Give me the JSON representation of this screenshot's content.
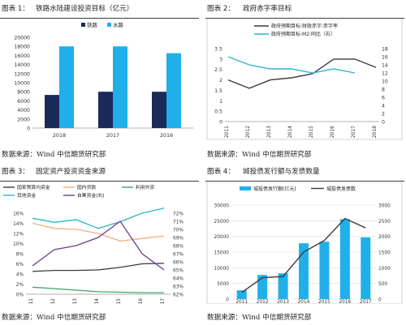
{
  "colors": {
    "navy": "#1c2a5a",
    "cyan": "#1fb0e9",
    "dark": "#3a3a3a",
    "gray": "#8c8c8c",
    "teal": "#2ab5c8",
    "orange": "#f2b07d",
    "green": "#3fa46a",
    "purple": "#6a3d88",
    "grid": "#d9d9d9"
  },
  "panels": {
    "p1": {
      "fig": "图表 1：",
      "title": "铁路水陆建设投资目标（亿元）",
      "source": "数据来源：Wind  中信期货研究部"
    },
    "p2": {
      "fig": "图表 2：",
      "title": "政府赤字率目标",
      "source": "数据来源：Wind  中信期货研究部"
    },
    "p3": {
      "fig": "图表 3：",
      "title": "固定资产投资资金来源",
      "source": "数据来源：Wind  中信期货研究部"
    },
    "p4": {
      "fig": "图表 4：",
      "title": "城投债发行额与发债数量",
      "source": "数据来源：Wind  中信期货研究部"
    }
  },
  "chart_data": [
    {
      "type": "bar",
      "categories": [
        "2018",
        "2017",
        "2016"
      ],
      "series": [
        {
          "name": "铁路",
          "values": [
            7300,
            8000,
            8000
          ]
        },
        {
          "name": "水路",
          "values": [
            18000,
            18000,
            16500
          ]
        }
      ],
      "ylim": [
        0,
        20000
      ],
      "yticks": [
        "0",
        "2000",
        "4000",
        "6000",
        "8000",
        "10000",
        "12000",
        "14000",
        "16000",
        "18000",
        "20000"
      ],
      "legend": "top"
    },
    {
      "type": "line",
      "categories": [
        "2011",
        "2012",
        "2013",
        "2014",
        "2015",
        "2016",
        "2017",
        "2018"
      ],
      "series": [
        {
          "name": "政府预期目标:财政赤字:赤字率",
          "axis": "left",
          "values": [
            2.0,
            1.6,
            2.0,
            2.1,
            2.3,
            3.0,
            3.0,
            2.6
          ]
        },
        {
          "name": "政府预期目标:M2:同比（右）",
          "axis": "right",
          "values": [
            16,
            14,
            13,
            13,
            12,
            13,
            12,
            null
          ]
        }
      ],
      "ylim_left": [
        0,
        3.5
      ],
      "yticks_left": [
        "0",
        "0.5",
        "1",
        "1.5",
        "2",
        "2.5",
        "3",
        "3.5"
      ],
      "ylim_right": [
        0,
        18
      ],
      "yticks_right": [
        "0",
        "2",
        "4",
        "6",
        "8",
        "10",
        "12",
        "14",
        "16",
        "18"
      ],
      "legend": "top"
    },
    {
      "type": "line",
      "categories": [
        "2011",
        "2012",
        "2013",
        "2014",
        "2015",
        "2016",
        "2017"
      ],
      "series": [
        {
          "name": "国家预算内资金",
          "axis": "left",
          "values": [
            4.5,
            4.7,
            4.7,
            4.8,
            5.3,
            6.0,
            6.1
          ]
        },
        {
          "name": "国内贷款",
          "axis": "left",
          "values": [
            14.0,
            13.0,
            12.8,
            12.0,
            10.5,
            11.0,
            11.5
          ]
        },
        {
          "name": "利用外资",
          "axis": "left",
          "values": [
            1.4,
            1.1,
            0.8,
            0.5,
            0.4,
            0.3,
            0.3
          ]
        },
        {
          "name": "其他资金",
          "axis": "left",
          "values": [
            15.0,
            14.2,
            14.7,
            13.0,
            14.3,
            16.0,
            17.0
          ]
        },
        {
          "name": "自筹资金(右)",
          "axis": "right",
          "values": [
            65.5,
            67.5,
            68.0,
            69.0,
            71.0,
            67.0,
            65.0
          ]
        }
      ],
      "ylim_left": [
        0,
        16
      ],
      "yticks_left": [
        "0%",
        "2%",
        "4%",
        "6%",
        "8%",
        "10%",
        "12%",
        "14%",
        "16%"
      ],
      "ylim_right": [
        62,
        72
      ],
      "yticks_right": [
        "62%",
        "63%",
        "64%",
        "65%",
        "66%",
        "67%",
        "68%",
        "69%",
        "70%",
        "71%",
        "72%"
      ],
      "legend": "top"
    },
    {
      "type": "bar",
      "categories": [
        "2011",
        "2012",
        "2013",
        "2014",
        "2015",
        "2016",
        "2017"
      ],
      "series": [
        {
          "name": "城投债发行额(亿元)",
          "axis": "left",
          "values": [
            2800,
            7700,
            8200,
            17800,
            18300,
            25500,
            19700
          ]
        },
        {
          "name": "城投债发债数",
          "axis": "right",
          "values": [
            210,
            680,
            720,
            1500,
            1870,
            2570,
            2270
          ]
        }
      ],
      "ylim_left": [
        0,
        30000
      ],
      "yticks_left": [
        "0",
        "5000",
        "10000",
        "15000",
        "20000",
        "25000",
        "30000"
      ],
      "ylim_right": [
        0,
        3000
      ],
      "yticks_right": [
        "0",
        "500",
        "1000",
        "1500",
        "2000",
        "2500",
        "3000"
      ],
      "legend": "top"
    }
  ]
}
